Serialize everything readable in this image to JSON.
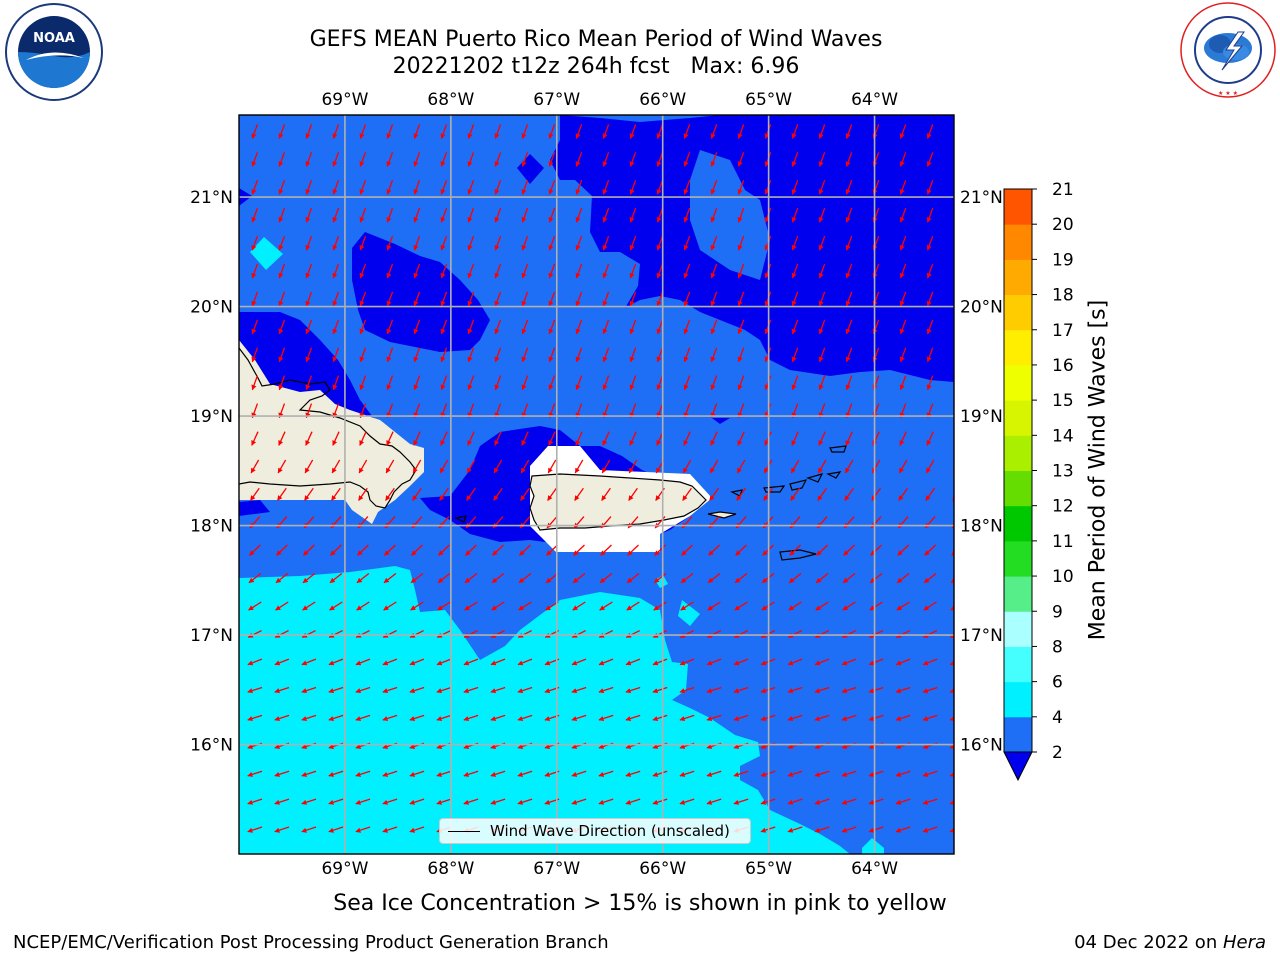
{
  "header": {
    "title_line1": "GEFS MEAN Puerto Rico Mean Period of Wind Waves",
    "title_line2": "20221202 t12z 264h fcst   Max: 6.96"
  },
  "logos": {
    "left": {
      "name": "noaa-logo",
      "text": "NOAA",
      "ring_text": "NATIONAL OCEANIC AND ATMOSPHERIC ADMINISTRATION · U.S. DEPARTMENT OF COMMERCE"
    },
    "right": {
      "name": "nws-logo",
      "ring_text": "NATIONAL WEATHER SERVICE"
    }
  },
  "map": {
    "lon_ticks": [
      "69°W",
      "68°W",
      "67°W",
      "66°W",
      "65°W",
      "64°W"
    ],
    "lat_ticks": [
      "21°N",
      "20°N",
      "19°N",
      "18°N",
      "17°N",
      "16°N"
    ],
    "lon_range": [
      -70.0,
      -63.25
    ],
    "lat_range": [
      15.0,
      21.75
    ],
    "legend_label": "Wind Wave Direction (unscaled)",
    "arrow_color": "#ff0000",
    "land_color": "#efeddd",
    "ice_note": "Sea Ice Concentration > 15% is shown in pink to yellow"
  },
  "colorbar": {
    "title": "Mean Period of Wind Waves [s]",
    "ticks": [
      "2",
      "4",
      "6",
      "8",
      "9",
      "10",
      "11",
      "12",
      "13",
      "14",
      "15",
      "16",
      "17",
      "18",
      "19",
      "20",
      "21"
    ],
    "colors": [
      "#1e6ff5",
      "#00f0ff",
      "#45ffff",
      "#aaffff",
      "#55ee88",
      "#22dd22",
      "#00c800",
      "#66dd00",
      "#aaee00",
      "#d7f500",
      "#eeff00",
      "#ffee00",
      "#ffcc00",
      "#ffaa00",
      "#ff8800",
      "#ff5500",
      "#ff2200",
      "#ff0000"
    ],
    "under_color": "#0000ee"
  },
  "footer": {
    "left": "NCEP/EMC/Verification Post Processing Product Generation Branch",
    "date": "04 Dec 2022 on ",
    "host": "Hera"
  }
}
